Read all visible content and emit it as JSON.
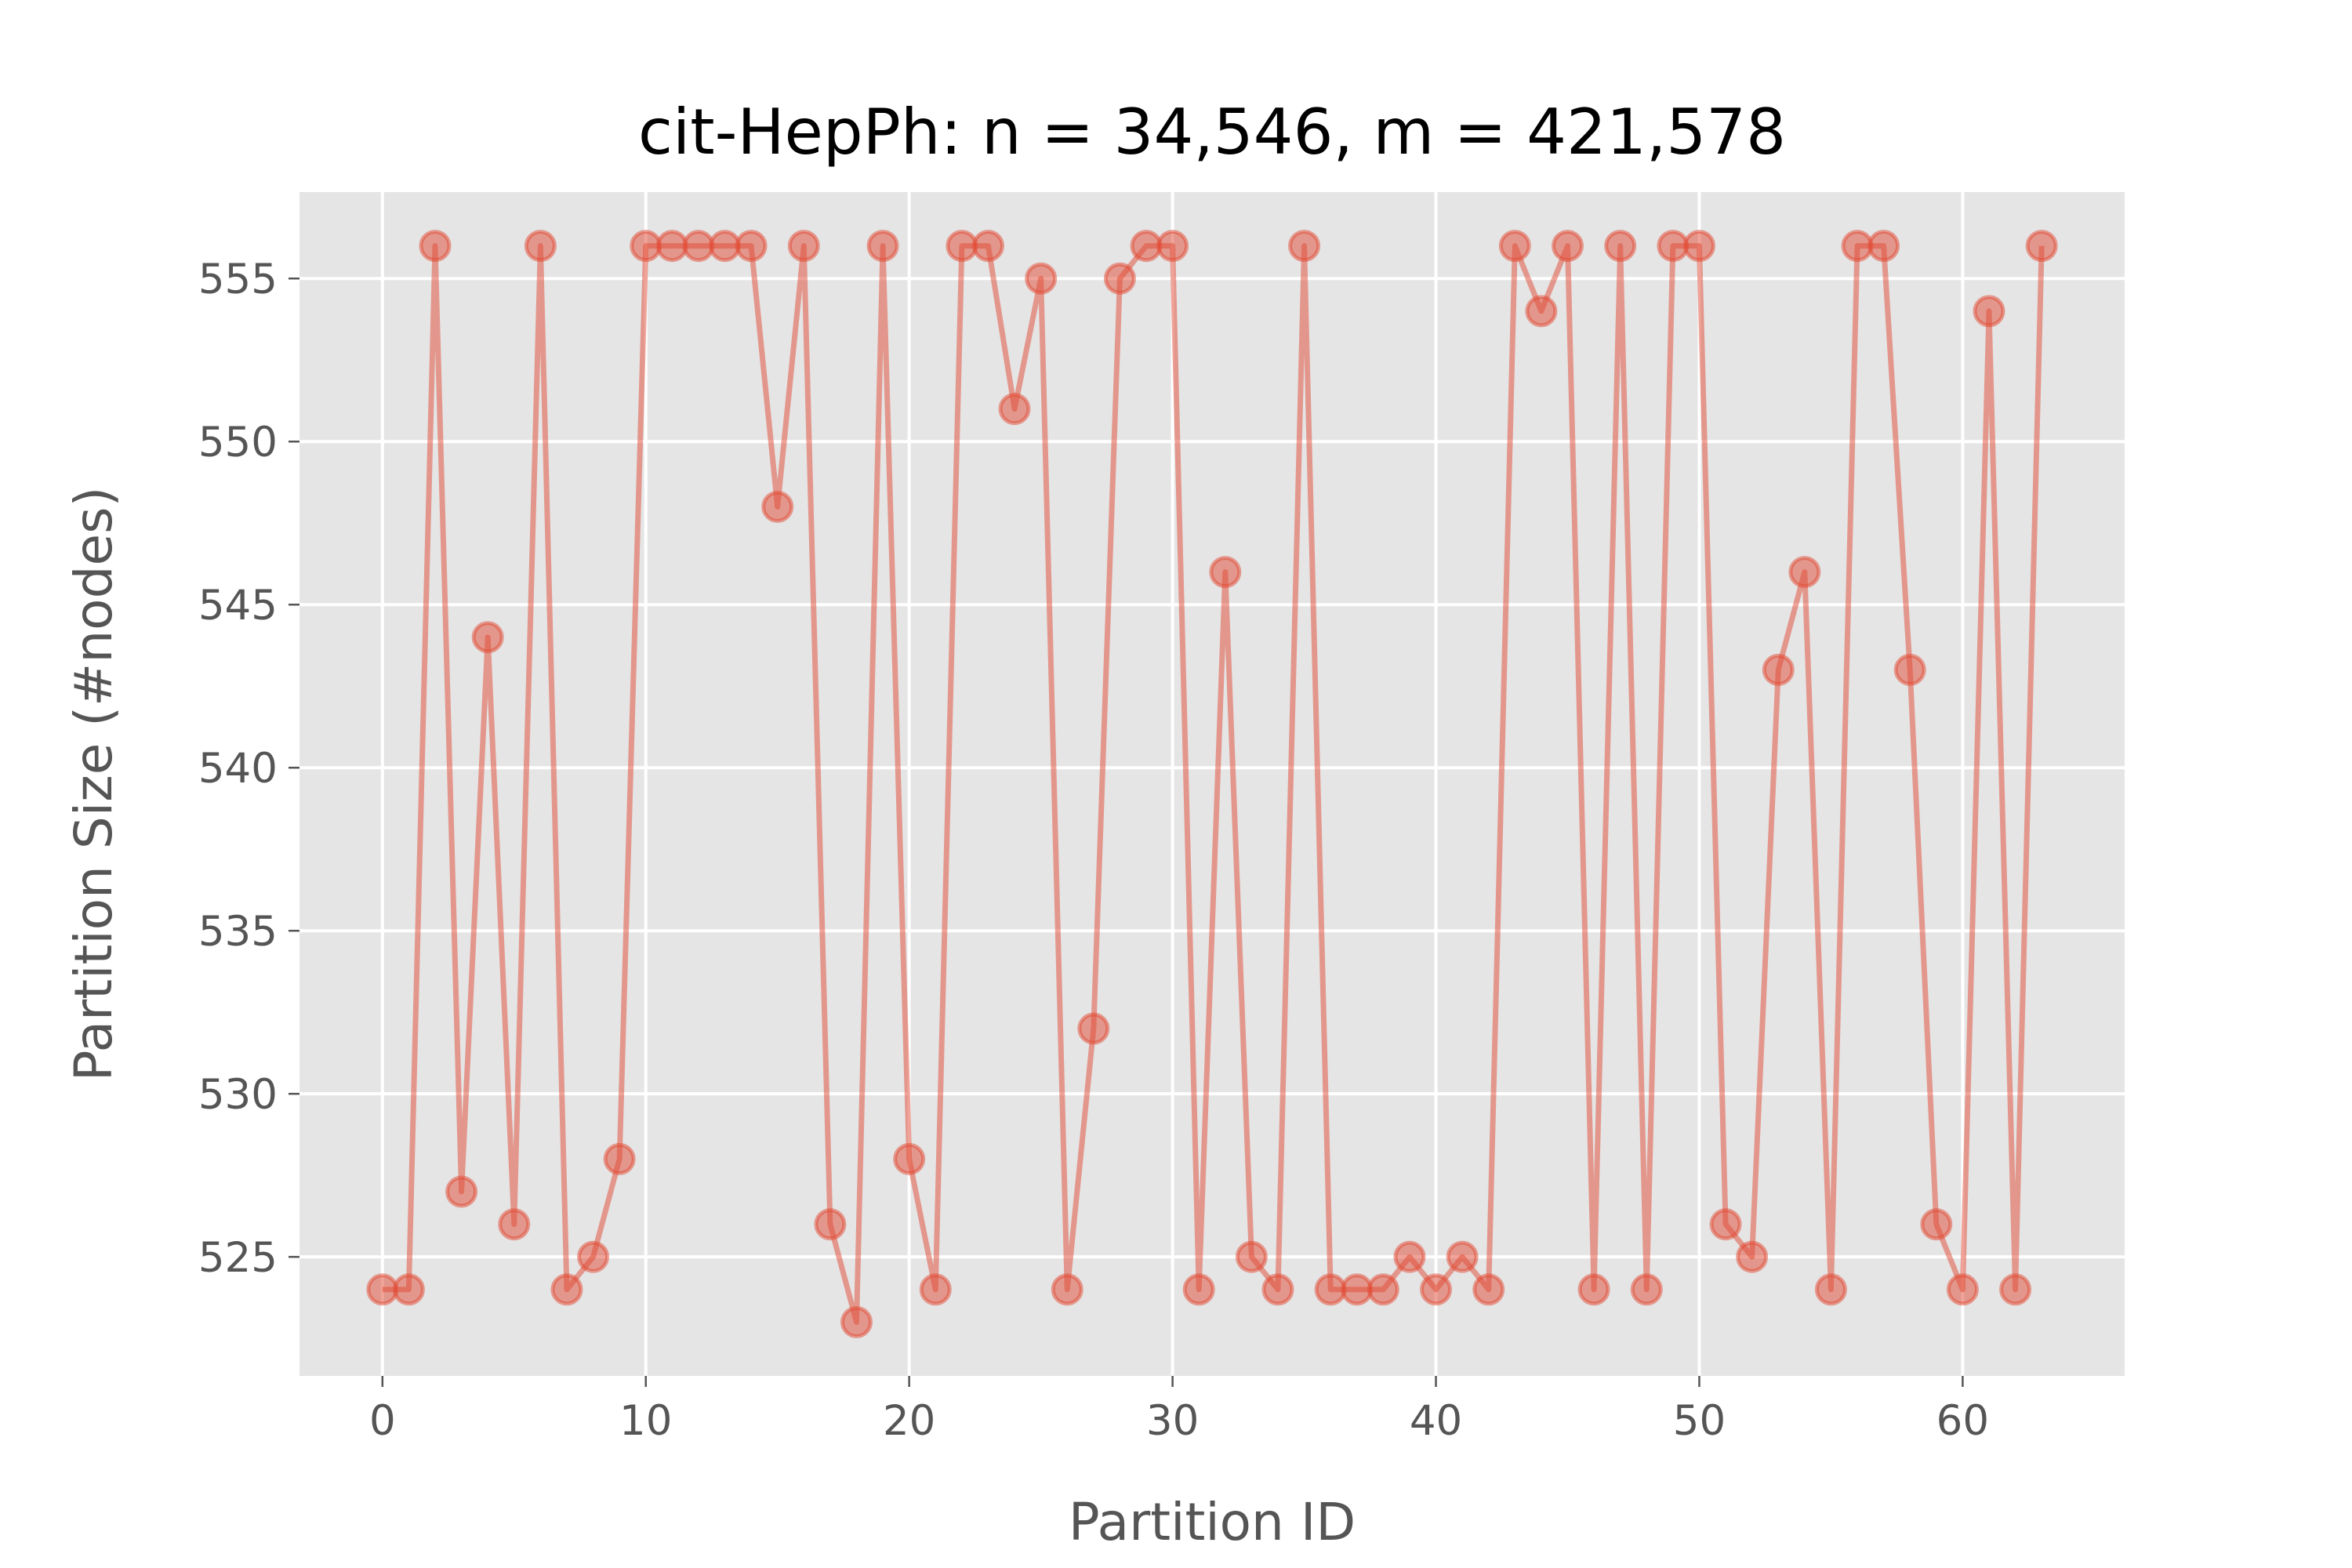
{
  "chart_data": {
    "type": "line",
    "title": "cit-HepPh: n = 34,546, m = 421,578",
    "xlabel": "Partition ID",
    "ylabel": "Partition Size (#nodes)",
    "xlim": [
      -3.15,
      66.15
    ],
    "ylim": [
      521.35,
      557.65
    ],
    "xticks": [
      0,
      10,
      20,
      30,
      40,
      50,
      60
    ],
    "yticks": [
      525,
      530,
      535,
      540,
      545,
      550,
      555
    ],
    "grid": true,
    "colors": {
      "series": "#E24A33",
      "background": "#E5E5E5"
    },
    "x": [
      0,
      1,
      2,
      3,
      4,
      5,
      6,
      7,
      8,
      9,
      10,
      11,
      12,
      13,
      14,
      15,
      16,
      17,
      18,
      19,
      20,
      21,
      22,
      23,
      24,
      25,
      26,
      27,
      28,
      29,
      30,
      31,
      32,
      33,
      34,
      35,
      36,
      37,
      38,
      39,
      40,
      41,
      42,
      43,
      44,
      45,
      46,
      47,
      48,
      49,
      50,
      51,
      52,
      53,
      54,
      55,
      56,
      57,
      58,
      59,
      60,
      61,
      62,
      63
    ],
    "y": [
      524,
      524,
      556,
      527,
      544,
      526,
      556,
      524,
      525,
      528,
      556,
      556,
      556,
      556,
      556,
      548,
      556,
      526,
      523,
      556,
      528,
      524,
      556,
      556,
      551,
      555,
      524,
      532,
      555,
      556,
      556,
      524,
      546,
      525,
      524,
      556,
      524,
      524,
      524,
      525,
      524,
      525,
      524,
      556,
      554,
      556,
      524,
      556,
      524,
      556,
      556,
      526,
      525,
      543,
      546,
      524,
      556,
      556,
      543,
      526,
      524,
      554,
      524,
      556
    ]
  }
}
